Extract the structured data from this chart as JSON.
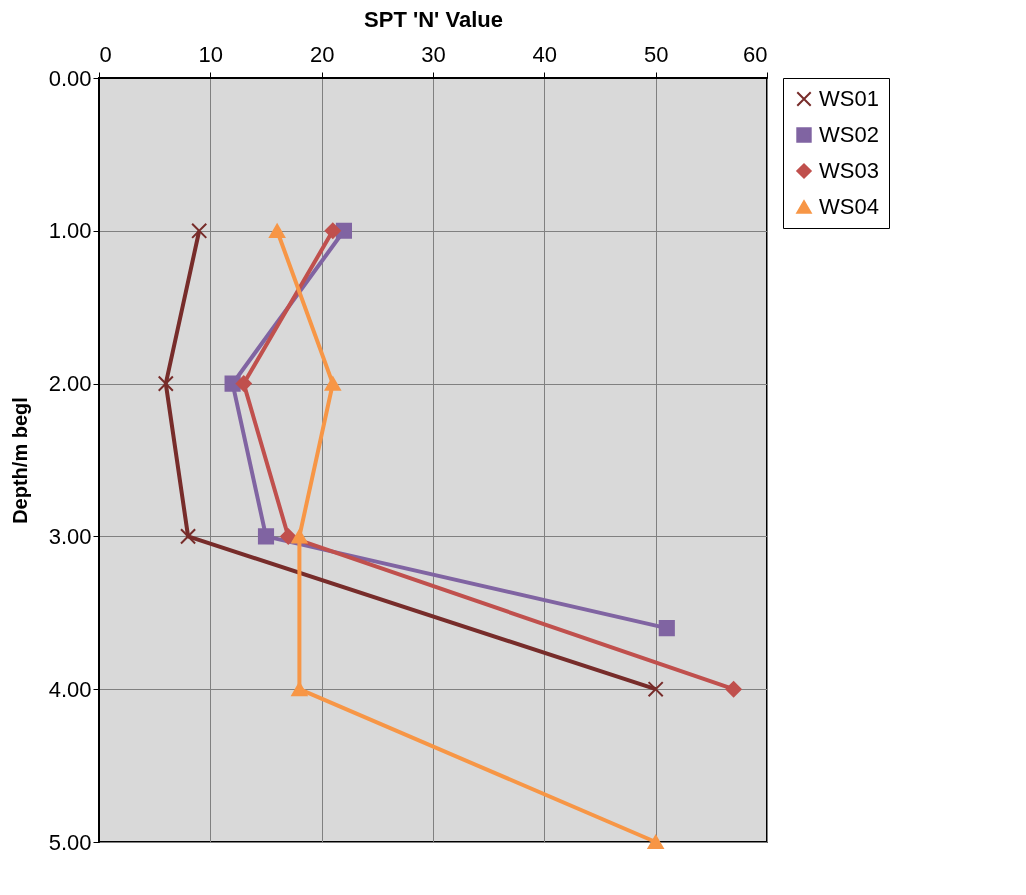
{
  "chart_data": {
    "type": "line",
    "xlabel": "SPT 'N' Value",
    "ylabel": "Depth/m begl",
    "xlim": [
      0,
      60
    ],
    "xticks": [
      0,
      10,
      20,
      30,
      40,
      50,
      60
    ],
    "ylim": [
      5,
      0
    ],
    "yticks": [
      {
        "value": 0,
        "label": "0.00"
      },
      {
        "value": 1,
        "label": "1.00"
      },
      {
        "value": 2,
        "label": "2.00"
      },
      {
        "value": 3,
        "label": "3.00"
      },
      {
        "value": 4,
        "label": "4.00"
      },
      {
        "value": 5,
        "label": "5.00"
      }
    ],
    "grid": true,
    "legend": "right",
    "series": [
      {
        "name": "WS01",
        "color": "#772c2a",
        "marker": "cross",
        "x": [
          9,
          6,
          8,
          50
        ],
        "values": [
          1,
          2,
          3,
          4
        ]
      },
      {
        "name": "WS02",
        "color": "#8064a2",
        "marker": "square",
        "x": [
          22,
          12,
          15,
          51
        ],
        "values": [
          1,
          2,
          3,
          3.6
        ]
      },
      {
        "name": "WS03",
        "color": "#c0504d",
        "marker": "diamond",
        "x": [
          21,
          13,
          17,
          57
        ],
        "values": [
          1,
          2,
          3,
          4
        ]
      },
      {
        "name": "WS04",
        "color": "#f79646",
        "marker": "triangle",
        "x": [
          16,
          21,
          18,
          18,
          50
        ],
        "values": [
          1,
          2,
          3,
          4,
          5
        ]
      }
    ]
  }
}
